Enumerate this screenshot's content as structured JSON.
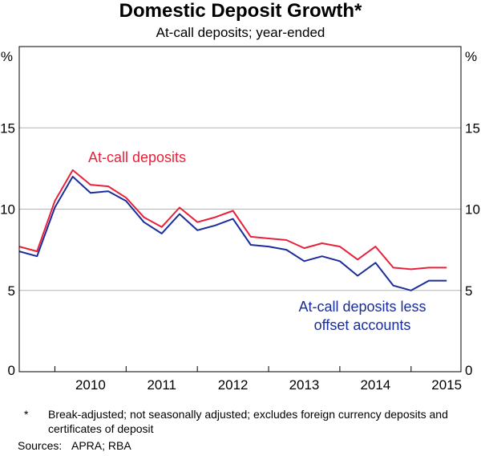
{
  "chart_data": {
    "type": "line",
    "title": "Domestic Deposit Growth*",
    "subtitle": "At-call deposits; year-ended",
    "y_unit_left": "%",
    "y_unit_right": "%",
    "ylim": [
      0,
      20
    ],
    "yticks": [
      0,
      5,
      10,
      15
    ],
    "xlim": [
      2009.5,
      2015.7
    ],
    "xticks": [
      "2010",
      "2011",
      "2012",
      "2013",
      "2014",
      "2015"
    ],
    "grid": true,
    "x": [
      2009.5,
      2009.75,
      2010.0,
      2010.25,
      2010.5,
      2010.75,
      2011.0,
      2011.25,
      2011.5,
      2011.75,
      2012.0,
      2012.25,
      2012.5,
      2012.75,
      2013.0,
      2013.25,
      2013.5,
      2013.75,
      2014.0,
      2014.25,
      2014.5,
      2014.75,
      2015.0,
      2015.25,
      2015.5
    ],
    "series": [
      {
        "name": "At-call deposits",
        "color": "#e8213b",
        "values": [
          7.7,
          7.4,
          10.5,
          12.4,
          11.5,
          11.4,
          10.7,
          9.5,
          8.9,
          10.1,
          9.2,
          9.5,
          9.9,
          8.3,
          8.2,
          8.1,
          7.6,
          7.9,
          7.7,
          6.9,
          7.7,
          6.4,
          6.3,
          6.4,
          6.4
        ]
      },
      {
        "name": "At-call deposits less offset accounts",
        "label_lines": [
          "At-call deposits less",
          "offset accounts"
        ],
        "color": "#1a2d9b",
        "values": [
          7.4,
          7.1,
          10.1,
          12.0,
          11.0,
          11.1,
          10.5,
          9.2,
          8.5,
          9.7,
          8.7,
          9.0,
          9.4,
          7.8,
          7.7,
          7.5,
          6.8,
          7.1,
          6.8,
          5.9,
          6.7,
          5.3,
          5.0,
          5.6,
          5.6
        ]
      }
    ]
  },
  "notes": {
    "footnote_mark": "*",
    "footnote": "Break-adjusted; not seasonally adjusted; excludes foreign currency deposits and certificates of deposit",
    "sources_label": "Sources:",
    "sources": "APRA; RBA"
  }
}
